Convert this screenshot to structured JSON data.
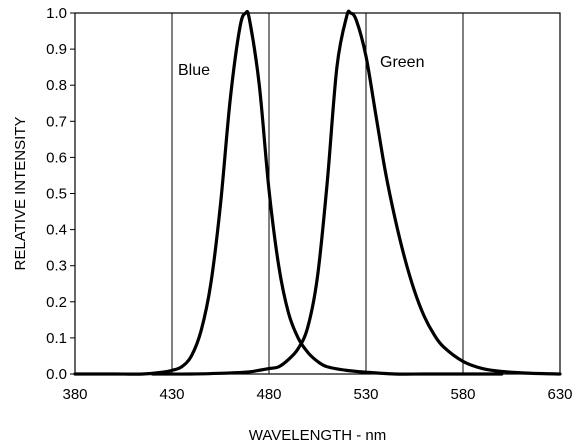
{
  "chart_data": {
    "type": "line",
    "xlabel": "WAVELENGTH - nm",
    "ylabel": "RELATIVE INTENSITY",
    "xlim": [
      380,
      630
    ],
    "ylim": [
      0,
      1.0
    ],
    "x_ticks": [
      "380",
      "430",
      "480",
      "530",
      "580",
      "630"
    ],
    "y_ticks": [
      "0.0",
      "0.1",
      "0.2",
      "0.3",
      "0.4",
      "0.5",
      "0.6",
      "0.7",
      "0.8",
      "0.9",
      "1.0"
    ],
    "grid": "vertical",
    "series": [
      {
        "name": "Blue",
        "x": [
          380,
          400,
          415,
          425,
          430,
          435,
          440,
          445,
          450,
          455,
          460,
          465,
          468,
          470,
          475,
          480,
          485,
          490,
          495,
          500,
          505,
          510,
          520,
          530,
          545,
          560,
          580,
          600
        ],
        "y": [
          0.0,
          0.0,
          0.0,
          0.005,
          0.01,
          0.02,
          0.05,
          0.12,
          0.25,
          0.47,
          0.76,
          0.96,
          1.0,
          0.98,
          0.8,
          0.51,
          0.3,
          0.17,
          0.1,
          0.06,
          0.035,
          0.02,
          0.01,
          0.005,
          0.0,
          0.0,
          0.0,
          0.0
        ]
      },
      {
        "name": "Green",
        "x": [
          420,
          440,
          460,
          470,
          480,
          485,
          490,
          495,
          500,
          505,
          510,
          515,
          520,
          522,
          525,
          530,
          535,
          540,
          545,
          550,
          555,
          560,
          565,
          570,
          580,
          590,
          600,
          615,
          630
        ],
        "y": [
          0.0,
          0.0,
          0.003,
          0.006,
          0.015,
          0.02,
          0.04,
          0.07,
          0.13,
          0.27,
          0.53,
          0.85,
          0.99,
          1.0,
          0.98,
          0.88,
          0.72,
          0.56,
          0.43,
          0.32,
          0.23,
          0.16,
          0.11,
          0.075,
          0.035,
          0.015,
          0.007,
          0.002,
          0.0
        ]
      }
    ]
  }
}
